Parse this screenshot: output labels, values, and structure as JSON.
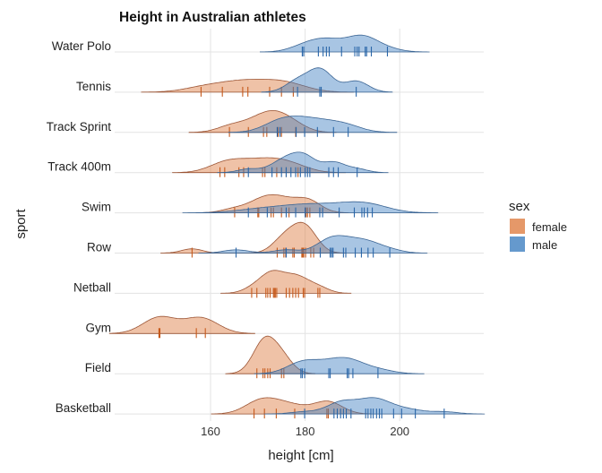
{
  "chart_data": {
    "type": "ridgeline",
    "title": "Height in Australian athletes",
    "xlabel": "height [cm]",
    "ylabel": "sport",
    "xlim": [
      140,
      216
    ],
    "xticks": [
      160,
      180,
      200
    ],
    "grid": true,
    "legend": {
      "title": "sex",
      "position": "right",
      "entries": [
        "female",
        "male"
      ]
    },
    "colors": {
      "female": "#E0864F",
      "male": "#3F7FC0",
      "female_rug": "#C65A1C",
      "male_rug": "#2A66A8"
    },
    "categories": [
      "Water Polo",
      "Tennis",
      "Track Sprint",
      "Track 400m",
      "Swim",
      "Row",
      "Netball",
      "Gym",
      "Field",
      "Basketball"
    ],
    "series": [
      {
        "name": "female",
        "values": {
          "Water Polo": [],
          "Tennis": [
            158.0,
            162.5,
            166.8,
            167.9,
            172.5,
            175.0,
            177.5
          ],
          "Track Sprint": [
            164.0,
            168.0,
            171.2,
            171.9,
            174.3,
            175.0,
            178.0
          ],
          "Track 400m": [
            162.0,
            163.0,
            166.0,
            167.0,
            171.0,
            171.5,
            174.0,
            176.0,
            178.5
          ],
          "Swim": [
            165.1,
            170.0,
            170.2,
            172.8,
            173.3,
            175.0,
            176.6,
            180.2,
            180.5,
            181.0
          ],
          "Row": [
            156.1,
            174.1,
            175.5,
            175.9,
            177.4,
            177.7,
            179.3,
            179.5,
            179.7,
            180.1,
            181.2,
            181.8
          ],
          "Netball": [
            168.7,
            169.8,
            171.7,
            172.1,
            172.6,
            173.3,
            173.5,
            173.7,
            174.0,
            176.0,
            176.7,
            177.4,
            178.0,
            178.6,
            179.6,
            179.9,
            182.7,
            183.1
          ],
          "Gym": [
            149.1,
            149.3,
            157.0,
            158.9
          ],
          "Field": [
            169.8,
            171.1,
            171.5,
            172.1,
            172.6,
            175.0,
            175.5
          ],
          "Basketball": [
            169.2,
            171.4,
            173.9,
            177.8,
            184.6,
            184.9
          ]
        }
      },
      {
        "name": "male",
        "values": {
          "Water Polo": [
            179.4,
            179.7,
            182.8,
            183.8,
            184.5,
            185.1,
            187.7,
            190.5,
            191.0,
            191.4,
            192.7,
            193.0,
            194.0,
            197.4
          ],
          "Tennis": [
            178.4,
            183.1,
            183.4,
            190.8
          ],
          "Track Sprint": [
            174.1,
            174.7,
            178.1,
            179.9,
            182.6,
            186.0,
            189.1
          ],
          "Track 400m": [
            168.0,
            173.0,
            175.0,
            176.0,
            177.0,
            178.0,
            179.0,
            180.0,
            180.5,
            181.0,
            185.0,
            186.0,
            187.0,
            191.0
          ],
          "Swim": [
            168.0,
            172.0,
            176.0,
            178.0,
            180.0,
            183.1,
            183.7,
            187.2,
            190.4,
            192.0,
            192.5,
            193.2,
            194.2
          ],
          "Row": [
            165.4,
            176.0,
            183.2,
            185.3,
            185.6,
            185.9,
            188.1,
            188.6,
            190.6,
            191.9,
            193.3,
            194.4,
            197.9
          ],
          "Netball": [],
          "Gym": [],
          "Field": [
            179.1,
            179.4,
            179.9,
            185.0,
            185.3,
            188.9,
            189.2,
            190.1,
            195.4
          ],
          "Basketball": [
            179.9,
            186.1,
            186.8,
            187.5,
            188.1,
            188.7,
            189.7,
            192.8,
            193.3,
            193.9,
            194.4,
            195.1,
            195.7,
            196.2,
            198.7,
            200.4,
            203.3,
            209.4
          ]
        }
      }
    ]
  }
}
